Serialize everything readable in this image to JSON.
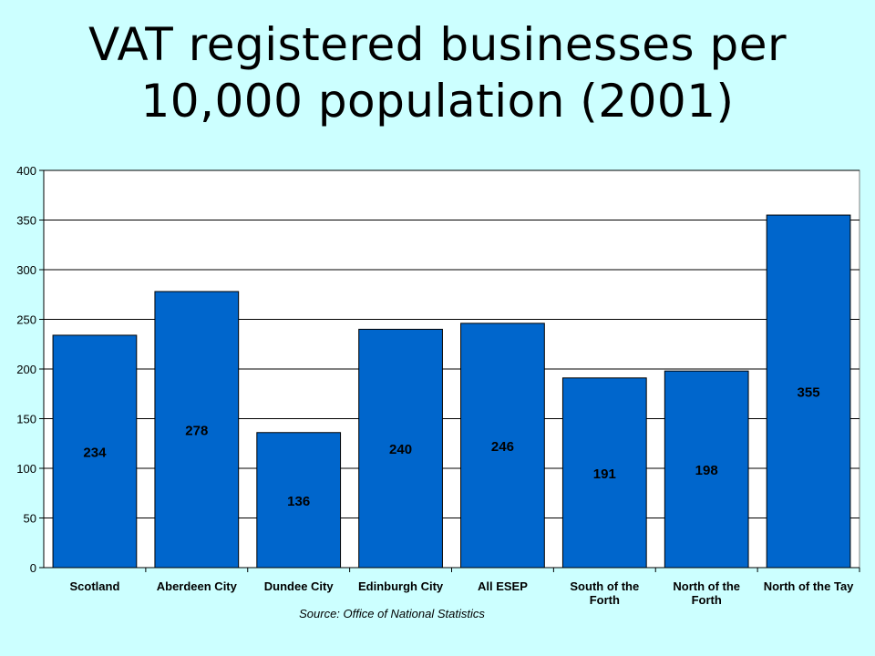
{
  "title_line1": "VAT registered businesses per",
  "title_line2": "10,000 population (2001)",
  "source": "Source: Office of National Statistics",
  "colors": {
    "background": "#ccffff",
    "bar": "#0066cc",
    "plot_bg": "#ffffff"
  },
  "chart_data": {
    "type": "bar",
    "categories": [
      "Scotland",
      "Aberdeen City",
      "Dundee City",
      "Edinburgh City",
      "All ESEP",
      "South of the Forth",
      "North of the Forth",
      "North of the Tay"
    ],
    "category_lines": [
      [
        "Scotland"
      ],
      [
        "Aberdeen City"
      ],
      [
        "Dundee City"
      ],
      [
        "Edinburgh City"
      ],
      [
        "All ESEP"
      ],
      [
        "South of the",
        "Forth"
      ],
      [
        "North of the",
        "Forth"
      ],
      [
        "North of the Tay"
      ]
    ],
    "values": [
      234,
      278,
      136,
      240,
      246,
      191,
      198,
      355
    ],
    "data_labels": [
      "234",
      "278",
      "136",
      "240",
      "246",
      "191",
      "198",
      "355"
    ],
    "title": "VAT registered businesses per 10,000 population (2001)",
    "xlabel": "",
    "ylabel": "",
    "ylim": [
      0,
      400
    ],
    "yticks": [
      0,
      50,
      100,
      150,
      200,
      250,
      300,
      350,
      400
    ],
    "grid": true,
    "legend": "none"
  }
}
